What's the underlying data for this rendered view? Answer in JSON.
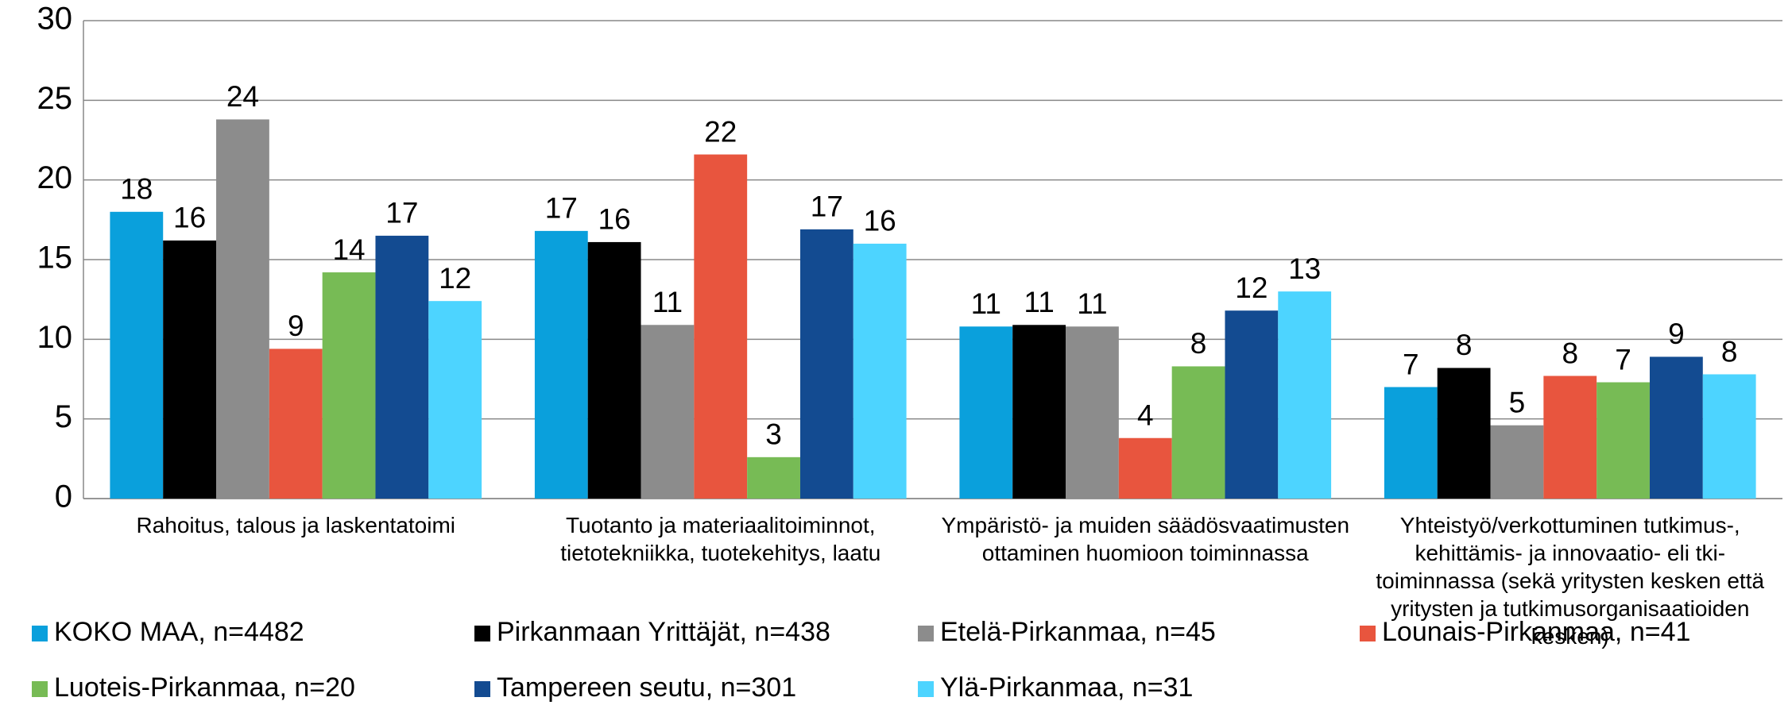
{
  "chart_data": {
    "type": "bar",
    "categories": [
      "Rahoitus, talous ja laskentatoimi",
      "Tuotanto ja materiaalitoiminnot, tietotekniikka, tuotekehitys, laatu",
      "Ympäristö- ja muiden säädösvaatimusten ottaminen huomioon toiminnassa",
      "Yhteistyö/verkottuminen tutkimus-, kehittämis- ja innovaatio- eli tki-toiminnassa (sekä yritysten kesken että yritysten ja tutkimusorganisaatioiden kesken)"
    ],
    "series": [
      {
        "name": "KOKO MAA, n=4482",
        "color": "#0aa0dc",
        "values": [
          18.0,
          16.8,
          10.8,
          7.0
        ],
        "value_labels": [
          "18",
          "17",
          "11",
          "7"
        ]
      },
      {
        "name": "Pirkanmaan Yrittäjät, n=438",
        "color": "#000000",
        "values": [
          16.2,
          16.1,
          10.9,
          8.2
        ],
        "value_labels": [
          "16",
          "16",
          "11",
          "8"
        ]
      },
      {
        "name": "Etelä-Pirkanmaa, n=45",
        "color": "#8c8c8c",
        "values": [
          23.8,
          10.9,
          10.8,
          4.6
        ],
        "value_labels": [
          "24",
          "11",
          "11",
          "5"
        ]
      },
      {
        "name": "Lounais-Pirkanmaa, n=41",
        "color": "#e8553e",
        "values": [
          9.4,
          21.6,
          3.8,
          7.7
        ],
        "value_labels": [
          "9",
          "22",
          "4",
          "8"
        ]
      },
      {
        "name": "Luoteis-Pirkanmaa, n=20",
        "color": "#77bb55",
        "values": [
          14.2,
          2.6,
          8.3,
          7.3
        ],
        "value_labels": [
          "14",
          "3",
          "8",
          "7"
        ]
      },
      {
        "name": "Tampereen seutu, n=301",
        "color": "#134b91",
        "values": [
          16.5,
          16.9,
          11.8,
          8.9
        ],
        "value_labels": [
          "17",
          "17",
          "12",
          "9"
        ]
      },
      {
        "name": "Ylä-Pirkanmaa, n=31",
        "color": "#4dd4ff",
        "values": [
          12.4,
          16.0,
          13.0,
          7.8
        ],
        "value_labels": [
          "12",
          "16",
          "13",
          "8"
        ]
      }
    ],
    "ylim": [
      0,
      30
    ],
    "yticks": [
      0,
      5,
      10,
      15,
      20,
      25,
      30
    ],
    "grid": true,
    "legend": "bottom"
  }
}
